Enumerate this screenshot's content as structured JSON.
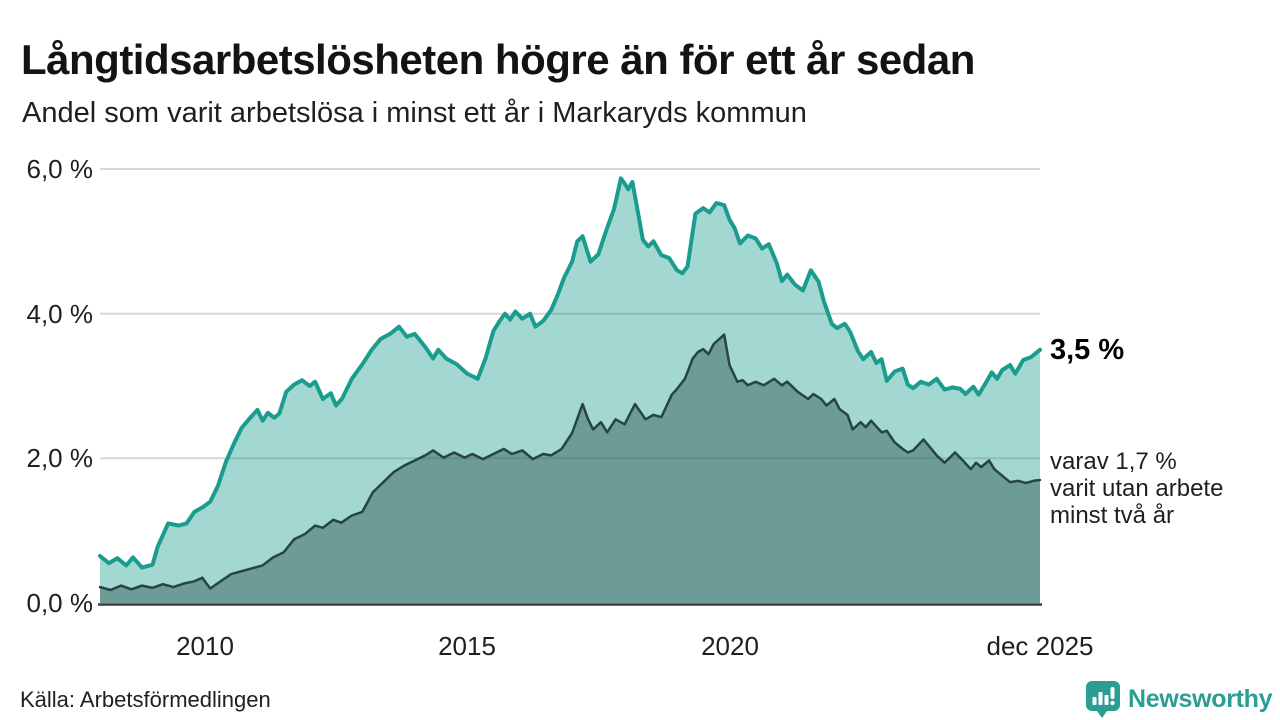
{
  "header": {
    "title": "Långtidsarbetslösheten högre än för ett år sedan",
    "subtitle": "Andel som varit arbetslösa i minst ett år i Markaryds kommun"
  },
  "chart_data": {
    "type": "area",
    "title": "Långtidsarbetslösheten högre än för ett år sedan",
    "subtitle": "Andel som varit arbetslösa i minst ett år i Markaryds kommun",
    "unit": "%",
    "grid": true,
    "legend_position": "none",
    "x_axis": {
      "range": [
        2008.0,
        2025.92
      ],
      "ticks": [
        {
          "t": 2010,
          "label": "2010"
        },
        {
          "t": 2015,
          "label": "2015"
        },
        {
          "t": 2020,
          "label": "2020"
        },
        {
          "t": 2025.92,
          "label": "dec 2025"
        }
      ]
    },
    "y_axis": {
      "range": [
        0,
        6
      ],
      "ticks": [
        {
          "v": 0,
          "label": "0,0 %"
        },
        {
          "v": 2,
          "label": "2,0 %"
        },
        {
          "v": 4,
          "label": "4,0 %"
        },
        {
          "v": 6,
          "label": "6,0 %"
        }
      ]
    },
    "series": [
      {
        "name": "Andel som varit arbetslösa i minst ett år",
        "line_color": "#1a9c8e",
        "fill_color": "rgba(26,156,142,0.40)",
        "stroke_width": 4,
        "end_value": 3.5,
        "end_label": "3,5 %",
        "points": [
          [
            2008.0,
            0.65
          ],
          [
            2008.17,
            0.55
          ],
          [
            2008.33,
            0.62
          ],
          [
            2008.5,
            0.52
          ],
          [
            2008.63,
            0.63
          ],
          [
            2008.8,
            0.49
          ],
          [
            2009.0,
            0.53
          ],
          [
            2009.1,
            0.78
          ],
          [
            2009.3,
            1.1
          ],
          [
            2009.5,
            1.07
          ],
          [
            2009.65,
            1.1
          ],
          [
            2009.8,
            1.26
          ],
          [
            2009.95,
            1.32
          ],
          [
            2010.1,
            1.4
          ],
          [
            2010.25,
            1.62
          ],
          [
            2010.4,
            1.95
          ],
          [
            2010.55,
            2.2
          ],
          [
            2010.7,
            2.42
          ],
          [
            2010.85,
            2.55
          ],
          [
            2011.0,
            2.67
          ],
          [
            2011.1,
            2.52
          ],
          [
            2011.2,
            2.63
          ],
          [
            2011.32,
            2.56
          ],
          [
            2011.42,
            2.62
          ],
          [
            2011.55,
            2.92
          ],
          [
            2011.7,
            3.02
          ],
          [
            2011.85,
            3.08
          ],
          [
            2012.0,
            3.0
          ],
          [
            2012.1,
            3.06
          ],
          [
            2012.25,
            2.82
          ],
          [
            2012.4,
            2.9
          ],
          [
            2012.5,
            2.73
          ],
          [
            2012.62,
            2.83
          ],
          [
            2012.8,
            3.1
          ],
          [
            2013.0,
            3.3
          ],
          [
            2013.18,
            3.5
          ],
          [
            2013.35,
            3.65
          ],
          [
            2013.55,
            3.73
          ],
          [
            2013.7,
            3.82
          ],
          [
            2013.85,
            3.68
          ],
          [
            2014.0,
            3.72
          ],
          [
            2014.2,
            3.54
          ],
          [
            2014.35,
            3.38
          ],
          [
            2014.45,
            3.5
          ],
          [
            2014.6,
            3.38
          ],
          [
            2014.8,
            3.3
          ],
          [
            2015.0,
            3.17
          ],
          [
            2015.2,
            3.1
          ],
          [
            2015.35,
            3.38
          ],
          [
            2015.5,
            3.76
          ],
          [
            2015.62,
            3.9
          ],
          [
            2015.72,
            4.0
          ],
          [
            2015.82,
            3.92
          ],
          [
            2015.92,
            4.03
          ],
          [
            2016.05,
            3.93
          ],
          [
            2016.2,
            4.0
          ],
          [
            2016.3,
            3.82
          ],
          [
            2016.45,
            3.9
          ],
          [
            2016.6,
            4.05
          ],
          [
            2016.72,
            4.25
          ],
          [
            2016.85,
            4.5
          ],
          [
            2017.0,
            4.72
          ],
          [
            2017.1,
            5.0
          ],
          [
            2017.2,
            5.07
          ],
          [
            2017.35,
            4.72
          ],
          [
            2017.5,
            4.82
          ],
          [
            2017.65,
            5.15
          ],
          [
            2017.8,
            5.45
          ],
          [
            2017.93,
            5.87
          ],
          [
            2018.0,
            5.8
          ],
          [
            2018.07,
            5.72
          ],
          [
            2018.15,
            5.82
          ],
          [
            2018.25,
            5.42
          ],
          [
            2018.35,
            5.02
          ],
          [
            2018.45,
            4.93
          ],
          [
            2018.55,
            5.0
          ],
          [
            2018.7,
            4.81
          ],
          [
            2018.85,
            4.77
          ],
          [
            2019.0,
            4.6
          ],
          [
            2019.1,
            4.56
          ],
          [
            2019.2,
            4.65
          ],
          [
            2019.35,
            5.38
          ],
          [
            2019.5,
            5.46
          ],
          [
            2019.62,
            5.4
          ],
          [
            2019.75,
            5.53
          ],
          [
            2019.9,
            5.5
          ],
          [
            2020.0,
            5.3
          ],
          [
            2020.1,
            5.18
          ],
          [
            2020.2,
            4.97
          ],
          [
            2020.35,
            5.08
          ],
          [
            2020.5,
            5.04
          ],
          [
            2020.62,
            4.9
          ],
          [
            2020.75,
            4.96
          ],
          [
            2020.9,
            4.7
          ],
          [
            2021.0,
            4.45
          ],
          [
            2021.1,
            4.54
          ],
          [
            2021.25,
            4.4
          ],
          [
            2021.4,
            4.32
          ],
          [
            2021.55,
            4.6
          ],
          [
            2021.7,
            4.44
          ],
          [
            2021.8,
            4.17
          ],
          [
            2021.95,
            3.86
          ],
          [
            2022.05,
            3.8
          ],
          [
            2022.2,
            3.86
          ],
          [
            2022.3,
            3.75
          ],
          [
            2022.45,
            3.48
          ],
          [
            2022.55,
            3.37
          ],
          [
            2022.7,
            3.47
          ],
          [
            2022.8,
            3.32
          ],
          [
            2022.9,
            3.37
          ],
          [
            2023.0,
            3.07
          ],
          [
            2023.15,
            3.2
          ],
          [
            2023.3,
            3.24
          ],
          [
            2023.4,
            3.02
          ],
          [
            2023.5,
            2.97
          ],
          [
            2023.65,
            3.06
          ],
          [
            2023.8,
            3.02
          ],
          [
            2023.95,
            3.1
          ],
          [
            2024.1,
            2.95
          ],
          [
            2024.25,
            2.98
          ],
          [
            2024.4,
            2.96
          ],
          [
            2024.5,
            2.89
          ],
          [
            2024.65,
            2.99
          ],
          [
            2024.75,
            2.88
          ],
          [
            2024.9,
            3.06
          ],
          [
            2025.0,
            3.19
          ],
          [
            2025.1,
            3.1
          ],
          [
            2025.2,
            3.22
          ],
          [
            2025.35,
            3.29
          ],
          [
            2025.45,
            3.17
          ],
          [
            2025.6,
            3.36
          ],
          [
            2025.75,
            3.4
          ],
          [
            2025.92,
            3.5
          ]
        ]
      },
      {
        "name": "Varav varit utan arbete minst två år",
        "line_color": "#26453f",
        "fill_color": "rgba(31,74,68,0.41)",
        "stroke_width": 2.5,
        "end_value": 1.7,
        "end_label": "varav 1,7 % varit utan arbete minst två år",
        "points": [
          [
            2008.0,
            0.22
          ],
          [
            2008.2,
            0.18
          ],
          [
            2008.4,
            0.24
          ],
          [
            2008.6,
            0.19
          ],
          [
            2008.8,
            0.24
          ],
          [
            2009.0,
            0.21
          ],
          [
            2009.2,
            0.26
          ],
          [
            2009.4,
            0.22
          ],
          [
            2009.6,
            0.27
          ],
          [
            2009.8,
            0.3
          ],
          [
            2009.95,
            0.35
          ],
          [
            2010.1,
            0.2
          ],
          [
            2010.3,
            0.3
          ],
          [
            2010.5,
            0.4
          ],
          [
            2010.7,
            0.44
          ],
          [
            2010.9,
            0.48
          ],
          [
            2011.1,
            0.52
          ],
          [
            2011.3,
            0.63
          ],
          [
            2011.5,
            0.7
          ],
          [
            2011.7,
            0.88
          ],
          [
            2011.9,
            0.95
          ],
          [
            2012.1,
            1.07
          ],
          [
            2012.25,
            1.04
          ],
          [
            2012.45,
            1.15
          ],
          [
            2012.6,
            1.11
          ],
          [
            2012.8,
            1.21
          ],
          [
            2013.0,
            1.26
          ],
          [
            2013.2,
            1.53
          ],
          [
            2013.4,
            1.67
          ],
          [
            2013.6,
            1.81
          ],
          [
            2013.8,
            1.9
          ],
          [
            2014.0,
            1.97
          ],
          [
            2014.2,
            2.04
          ],
          [
            2014.35,
            2.11
          ],
          [
            2014.55,
            2.01
          ],
          [
            2014.75,
            2.08
          ],
          [
            2014.95,
            2.01
          ],
          [
            2015.1,
            2.06
          ],
          [
            2015.3,
            1.99
          ],
          [
            2015.5,
            2.06
          ],
          [
            2015.7,
            2.13
          ],
          [
            2015.85,
            2.06
          ],
          [
            2016.05,
            2.11
          ],
          [
            2016.25,
            1.99
          ],
          [
            2016.45,
            2.06
          ],
          [
            2016.6,
            2.04
          ],
          [
            2016.8,
            2.13
          ],
          [
            2017.0,
            2.35
          ],
          [
            2017.2,
            2.75
          ],
          [
            2017.3,
            2.55
          ],
          [
            2017.4,
            2.4
          ],
          [
            2017.55,
            2.5
          ],
          [
            2017.67,
            2.36
          ],
          [
            2017.83,
            2.54
          ],
          [
            2018.0,
            2.47
          ],
          [
            2018.2,
            2.75
          ],
          [
            2018.4,
            2.54
          ],
          [
            2018.55,
            2.6
          ],
          [
            2018.7,
            2.57
          ],
          [
            2018.9,
            2.88
          ],
          [
            2019.0,
            2.96
          ],
          [
            2019.15,
            3.1
          ],
          [
            2019.3,
            3.38
          ],
          [
            2019.4,
            3.47
          ],
          [
            2019.5,
            3.51
          ],
          [
            2019.6,
            3.44
          ],
          [
            2019.7,
            3.58
          ],
          [
            2019.9,
            3.71
          ],
          [
            2020.0,
            3.29
          ],
          [
            2020.15,
            3.06
          ],
          [
            2020.25,
            3.08
          ],
          [
            2020.35,
            3.01
          ],
          [
            2020.5,
            3.06
          ],
          [
            2020.65,
            3.01
          ],
          [
            2020.85,
            3.1
          ],
          [
            2021.0,
            3.01
          ],
          [
            2021.1,
            3.06
          ],
          [
            2021.3,
            2.92
          ],
          [
            2021.5,
            2.82
          ],
          [
            2021.6,
            2.89
          ],
          [
            2021.75,
            2.82
          ],
          [
            2021.85,
            2.73
          ],
          [
            2022.0,
            2.82
          ],
          [
            2022.1,
            2.68
          ],
          [
            2022.25,
            2.6
          ],
          [
            2022.35,
            2.4
          ],
          [
            2022.5,
            2.5
          ],
          [
            2022.6,
            2.43
          ],
          [
            2022.7,
            2.52
          ],
          [
            2022.9,
            2.36
          ],
          [
            2023.0,
            2.38
          ],
          [
            2023.15,
            2.22
          ],
          [
            2023.3,
            2.13
          ],
          [
            2023.4,
            2.08
          ],
          [
            2023.5,
            2.11
          ],
          [
            2023.7,
            2.26
          ],
          [
            2023.85,
            2.13
          ],
          [
            2023.95,
            2.04
          ],
          [
            2024.1,
            1.94
          ],
          [
            2024.2,
            2.01
          ],
          [
            2024.3,
            2.08
          ],
          [
            2024.45,
            1.97
          ],
          [
            2024.6,
            1.85
          ],
          [
            2024.7,
            1.94
          ],
          [
            2024.8,
            1.88
          ],
          [
            2024.95,
            1.97
          ],
          [
            2025.05,
            1.85
          ],
          [
            2025.2,
            1.76
          ],
          [
            2025.35,
            1.67
          ],
          [
            2025.5,
            1.69
          ],
          [
            2025.65,
            1.66
          ],
          [
            2025.8,
            1.69
          ],
          [
            2025.92,
            1.7
          ]
        ]
      }
    ],
    "annotations": {
      "series1_end": "3,5 %",
      "series2_end_lines": [
        "varav 1,7 %",
        "varit utan arbete",
        "minst två år"
      ]
    }
  },
  "footer": {
    "source": "Källa: Arbetsförmedlingen",
    "brand": "Newsworthy"
  },
  "colors": {
    "accent_teal": "#1a9c8e",
    "dark_teal": "#26453f",
    "light_fill": "#a7d7d0",
    "dark_fill": "#6f9c97",
    "grid": "#d8d8d8",
    "axis": "#3c3c3c",
    "brand": "#2b9e91"
  }
}
